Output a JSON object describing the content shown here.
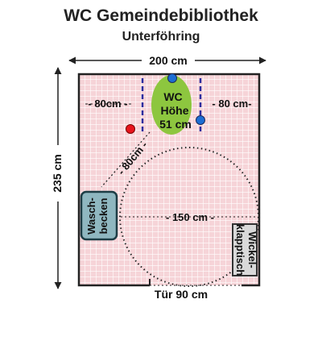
{
  "header": {
    "title": "WC Gemeindebibliothek",
    "subtitle": "Unterföhring"
  },
  "dimensions": {
    "width": "200 cm",
    "depth": "235 cm",
    "door": "Tür 90 cm"
  },
  "fixtures": {
    "wc_line1": "WC",
    "wc_line2": "Höhe",
    "wc_line3": "51 cm",
    "basin_line1": "Wasch-",
    "basin_line2": "becken",
    "changing_line1": "Wickel-",
    "changing_line2": "klapptisch"
  },
  "clearances": {
    "left_of_wc": "- 80cm -",
    "right_of_wc": "- 80 cm-",
    "front_of_wc": "- 80cm -",
    "turning_circle": "- 150 cm -"
  },
  "colors": {
    "floor": "#f6d4d8",
    "grid": "#ffffff",
    "wall": "#222222",
    "wc": "#8dc63f",
    "basin": "#8fb7c0",
    "grab_bar": "#2d2d9e",
    "flush": "#1c6ed4",
    "alarm": "#e8141c"
  }
}
